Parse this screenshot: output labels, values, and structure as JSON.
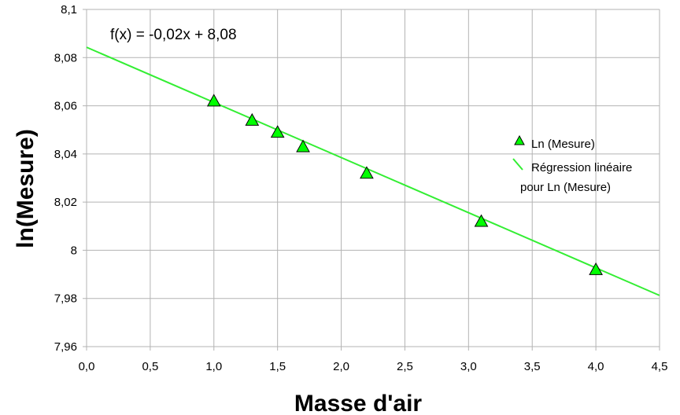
{
  "chart_data": {
    "type": "scatter",
    "xlabel": "Masse d'air",
    "ylabel": "ln(Mesure)",
    "xlim": [
      0,
      4.5
    ],
    "ylim": [
      7.96,
      8.1
    ],
    "x_ticks": [
      "0,0",
      "0,5",
      "1,0",
      "1,5",
      "2,0",
      "2,5",
      "3,0",
      "3,5",
      "4,0",
      "4,5"
    ],
    "y_ticks": [
      "7,96",
      "7,98",
      "8",
      "8,02",
      "8,04",
      "8,06",
      "8,08",
      "8,1"
    ],
    "grid": true,
    "legend_position": "right",
    "series": [
      {
        "name": "Ln (Mesure)",
        "marker": "triangle",
        "color": "#00ff00",
        "x": [
          1.0,
          1.3,
          1.5,
          1.7,
          2.2,
          3.1,
          4.0
        ],
        "y": [
          8.062,
          8.054,
          8.049,
          8.043,
          8.032,
          8.012,
          7.992
        ]
      }
    ],
    "trendline": {
      "name": "Régression linéaire pour Ln (Mesure)",
      "name_line1": "Régression linéaire",
      "name_line2": "pour Ln (Mesure)",
      "color": "#33ee33",
      "slope": -0.0229,
      "intercept": 8.0843,
      "equation": "f(x) = -0,02x + 8,08"
    }
  }
}
